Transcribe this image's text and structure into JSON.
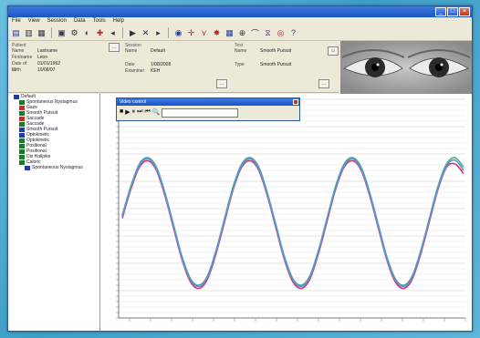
{
  "window": {
    "title": "",
    "menu": [
      "File",
      "View",
      "Session",
      "Data",
      "Tools",
      "Help"
    ]
  },
  "info": {
    "group1_title": "Patient",
    "group1_rows": [
      [
        "Name",
        "Lastname"
      ],
      [
        "Firstname",
        "Leon"
      ],
      [
        "Date of birth",
        "01/01/1962"
      ],
      [
        "ID",
        "10/08/07"
      ]
    ],
    "group2_title": "Session",
    "group2_rows": [
      [
        "Name",
        "Default"
      ],
      [
        "Date",
        "1/08/2008"
      ],
      [
        "Examiner",
        "KEH"
      ]
    ],
    "group3_title": "Test",
    "group3_rows": [
      [
        "Name",
        "Smooth Pursuit"
      ],
      [
        "Type",
        "Smooth Pursuit"
      ]
    ]
  },
  "tree": [
    {
      "label": "Default",
      "level": 0,
      "icon": "blue"
    },
    {
      "label": "Spontaneous Nystagmus",
      "level": 1,
      "icon": "green"
    },
    {
      "label": "Gaze",
      "level": 1,
      "icon": "red"
    },
    {
      "label": "Smooth Pursuit",
      "level": 1,
      "icon": "green"
    },
    {
      "label": "Saccade",
      "level": 1,
      "icon": "red"
    },
    {
      "label": "Saccade",
      "level": 1,
      "icon": "green"
    },
    {
      "label": "Smooth Pursuit",
      "level": 1,
      "icon": "blue"
    },
    {
      "label": "Optokinetic",
      "level": 1,
      "icon": "blue"
    },
    {
      "label": "Optokinetic",
      "level": 1,
      "icon": "green"
    },
    {
      "label": "Positional",
      "level": 1,
      "icon": "green"
    },
    {
      "label": "Positional",
      "level": 1,
      "icon": "green"
    },
    {
      "label": "Dix Hallpike",
      "level": 1,
      "icon": "green"
    },
    {
      "label": "Caloric",
      "level": 1,
      "icon": "green"
    },
    {
      "label": "Spontaneous Nystagmus",
      "level": 2,
      "icon": "blue"
    }
  ],
  "mini": {
    "title": "Video control"
  },
  "chart_data": {
    "type": "line",
    "x": [
      0,
      1,
      2,
      3,
      4,
      5,
      6,
      7,
      8,
      9,
      10,
      11,
      12,
      13,
      14,
      15,
      16,
      17,
      18,
      19,
      20,
      21,
      22,
      23,
      24,
      25,
      26,
      27,
      28,
      29,
      30,
      31,
      32,
      33,
      34,
      35,
      36,
      37,
      38,
      39,
      40
    ],
    "xlabel": "",
    "ylabel": "",
    "series": [
      {
        "color": "#40b090",
        "values": [
          0.1,
          0.55,
          0.9,
          1.0,
          0.85,
          0.45,
          -0.05,
          -0.55,
          -0.9,
          -1.0,
          -0.85,
          -0.45,
          0.05,
          0.55,
          0.9,
          1.0,
          0.85,
          0.45,
          -0.05,
          -0.55,
          -0.9,
          -1.0,
          -0.85,
          -0.45,
          0.05,
          0.55,
          0.9,
          1.0,
          0.85,
          0.45,
          -0.05,
          -0.55,
          -0.9,
          -1.0,
          -0.85,
          -0.45,
          0.05,
          0.55,
          0.9,
          1.0,
          0.85
        ]
      },
      {
        "color": "#d83068",
        "values": [
          0.05,
          0.5,
          0.85,
          0.95,
          0.8,
          0.4,
          -0.1,
          -0.6,
          -0.95,
          -1.05,
          -0.9,
          -0.5,
          0.0,
          0.5,
          0.85,
          0.95,
          0.8,
          0.4,
          -0.1,
          -0.6,
          -0.95,
          -1.05,
          -0.9,
          -0.5,
          0.0,
          0.5,
          0.85,
          0.95,
          0.8,
          0.4,
          -0.1,
          -0.6,
          -0.95,
          -1.05,
          -0.9,
          -0.5,
          0.0,
          0.5,
          0.85,
          0.9,
          0.75
        ]
      },
      {
        "color": "#6090d8",
        "values": [
          0.08,
          0.52,
          0.88,
          0.98,
          0.82,
          0.42,
          -0.08,
          -0.58,
          -0.92,
          -1.02,
          -0.87,
          -0.47,
          0.03,
          0.52,
          0.87,
          0.98,
          0.82,
          0.42,
          -0.08,
          -0.58,
          -0.92,
          -1.02,
          -0.87,
          -0.47,
          0.03,
          0.52,
          0.87,
          0.98,
          0.82,
          0.42,
          -0.08,
          -0.58,
          -0.92,
          -1.02,
          -0.87,
          -0.47,
          0.03,
          0.52,
          0.87,
          0.96,
          0.8
        ]
      }
    ]
  }
}
